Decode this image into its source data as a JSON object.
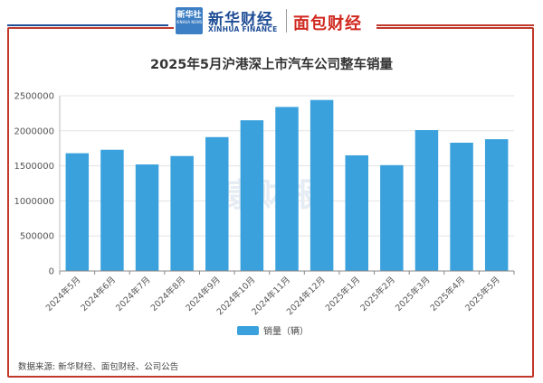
{
  "brand": {
    "seal_label": "新华社",
    "seal_sub": "XINHUA NEWS",
    "xinhua_cn": "新华财经",
    "xinhua_en": "XINHUA FINANCE",
    "mianbao": "面包财经",
    "colors": {
      "blue": "#1f4e96",
      "red": "#c0392b"
    }
  },
  "watermark": "康财报",
  "source": "数据来源: 新华财经、面包财经、公司公告",
  "chart_data": {
    "type": "bar",
    "title": "2025年5月沪港深上市汽车公司整车销量",
    "categories": [
      "2024年5月",
      "2024年6月",
      "2024年7月",
      "2024年8月",
      "2024年9月",
      "2024年10月",
      "2024年11月",
      "2024年12月",
      "2025年1月",
      "2025年2月",
      "2025年3月",
      "2025年4月",
      "2025年5月"
    ],
    "series": [
      {
        "name": "销量（辆）",
        "color": "#3aa1dd",
        "values": [
          1680000,
          1730000,
          1520000,
          1640000,
          1910000,
          2150000,
          2340000,
          2440000,
          1650000,
          1510000,
          2010000,
          1830000,
          1880000
        ]
      }
    ],
    "ylim": [
      0,
      2500000
    ],
    "yticks": [
      0,
      500000,
      1000000,
      1500000,
      2000000,
      2500000
    ],
    "grid": true,
    "legend_position": "bottom"
  }
}
